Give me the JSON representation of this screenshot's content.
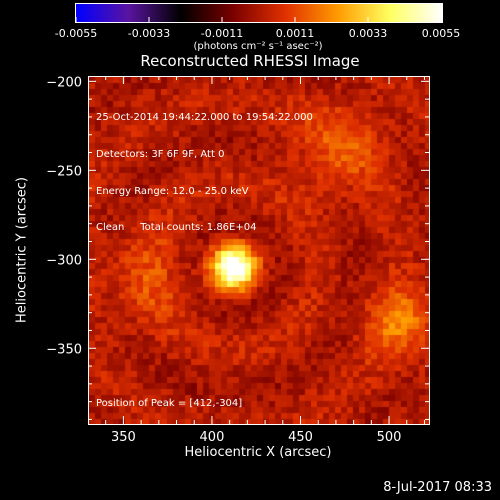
{
  "chart_data": {
    "type": "heatmap",
    "title": "Reconstructed RHESSI Image",
    "xlabel": "Heliocentric X (arcsec)",
    "ylabel": "Heliocentric Y (arcsec)",
    "xlim": [
      330,
      522
    ],
    "ylim": [
      -392,
      -197
    ],
    "x_ticks": [
      350,
      400,
      450,
      500
    ],
    "y_ticks": [
      -200,
      -250,
      -300,
      -350
    ],
    "colorbar": {
      "min": -0.0055,
      "max": 0.0055,
      "ticks": [
        "-0.0055",
        "-0.0033",
        "-0.0011",
        "0.0011",
        "0.0033",
        "0.0055"
      ],
      "units_label": "(photons cm⁻² s⁻¹ asec⁻²)",
      "colormap": [
        "#0000ff",
        "#5a14a0",
        "#000000",
        "#7a0000",
        "#e03000",
        "#ff9a00",
        "#ffff60",
        "#ffffff"
      ]
    },
    "annotations": [
      "25-Oct-2014 19:44:22.000 to 19:54:22.000",
      "Detectors: 3F 6F 9F, Att 0",
      "Energy Range: 12.0 - 25.0 keV",
      "Clean     Total counts: 1.86E+04"
    ],
    "peak_label": "Position of Peak = [412,-304]",
    "peak": {
      "x": 412,
      "y": -304,
      "value": 0.0055
    },
    "sources": [
      {
        "x": 412,
        "y": -304,
        "value": 0.0055,
        "sigma": 9
      },
      {
        "x": 506,
        "y": -335,
        "value": 0.0018,
        "sigma": 14
      },
      {
        "x": 470,
        "y": -238,
        "value": 0.0012,
        "sigma": 18
      },
      {
        "x": 360,
        "y": -312,
        "value": 0.0009,
        "sigma": 18
      }
    ]
  },
  "footer": {
    "date_stamp": "8-Jul-2017 08:33"
  }
}
